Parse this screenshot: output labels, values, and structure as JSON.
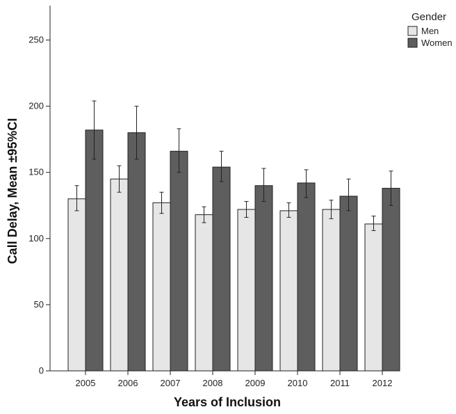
{
  "chart_data": {
    "type": "bar",
    "categories": [
      "2005",
      "2006",
      "2007",
      "2008",
      "2009",
      "2010",
      "2011",
      "2012"
    ],
    "series": [
      {
        "name": "Men",
        "color": "#e6e6e6",
        "values": [
          130,
          145,
          127,
          118,
          122,
          121,
          122,
          111
        ],
        "ci_low": [
          121,
          135,
          119,
          112,
          116,
          116,
          115,
          106
        ],
        "ci_high": [
          140,
          155,
          135,
          124,
          128,
          127,
          129,
          117
        ]
      },
      {
        "name": "Women",
        "color": "#5e5e5e",
        "values": [
          182,
          180,
          166,
          154,
          140,
          142,
          132,
          138
        ],
        "ci_low": [
          160,
          160,
          150,
          143,
          128,
          131,
          121,
          125
        ],
        "ci_high": [
          204,
          200,
          183,
          166,
          153,
          152,
          145,
          151
        ]
      }
    ],
    "title": "",
    "xlabel": "Years of Inclusion",
    "ylabel": "Call Delay, Mean ±95%CI",
    "ylim": [
      0,
      275
    ],
    "yticks": [
      0,
      50,
      100,
      150,
      200,
      250
    ],
    "legend": {
      "title": "Gender",
      "position": "top-right"
    },
    "grid": false
  }
}
